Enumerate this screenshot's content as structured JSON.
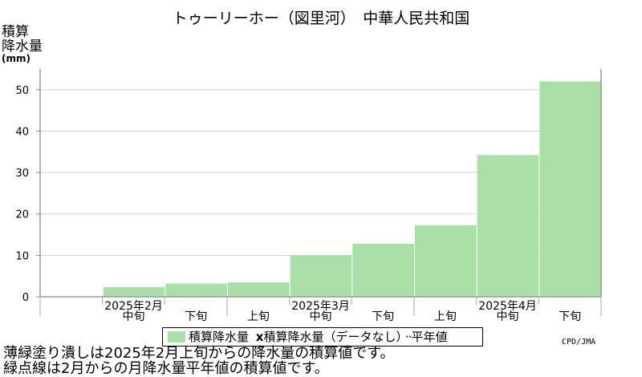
{
  "title": "トゥーリーホー（図里河）　中華人民共和国",
  "ylabel": [
    "積算",
    "降水量"
  ],
  "unit": "(mm)",
  "legend": {
    "series_label": "積算降水量",
    "marker": "x",
    "normal_label": "積算降水量（データなし）",
    "normal_suffix": "平年値"
  },
  "credit": "CPD/JMA",
  "notes": [
    "薄緑塗り潰しは2025年2月上旬からの降水量の積算値です。",
    "緑点線は2月からの月降水量平年値の積算値です。"
  ],
  "chart_data": {
    "type": "area",
    "ylim": [
      0,
      55
    ],
    "yticks": [
      0,
      10,
      20,
      30,
      40,
      50
    ],
    "grid": true,
    "periods": [
      "上旬",
      "中旬",
      "下旬",
      "上旬",
      "中旬",
      "下旬",
      "上旬",
      "中旬",
      "下旬"
    ],
    "visible_period_labels": [
      "",
      "中旬",
      "下旬",
      "上旬",
      "中旬",
      "下旬",
      "上旬",
      "中旬",
      "下旬"
    ],
    "months": [
      {
        "label": "2025年2月",
        "start": 0
      },
      {
        "label": "2025年3月",
        "start": 3
      },
      {
        "label": "2025年4月",
        "start": 6
      }
    ],
    "series": [
      {
        "name": "積算降水量",
        "color": "#a8e0a8",
        "values": [
          2.3,
          3.2,
          3.5,
          10.0,
          12.8,
          17.3,
          34.2,
          52.0
        ]
      }
    ]
  }
}
